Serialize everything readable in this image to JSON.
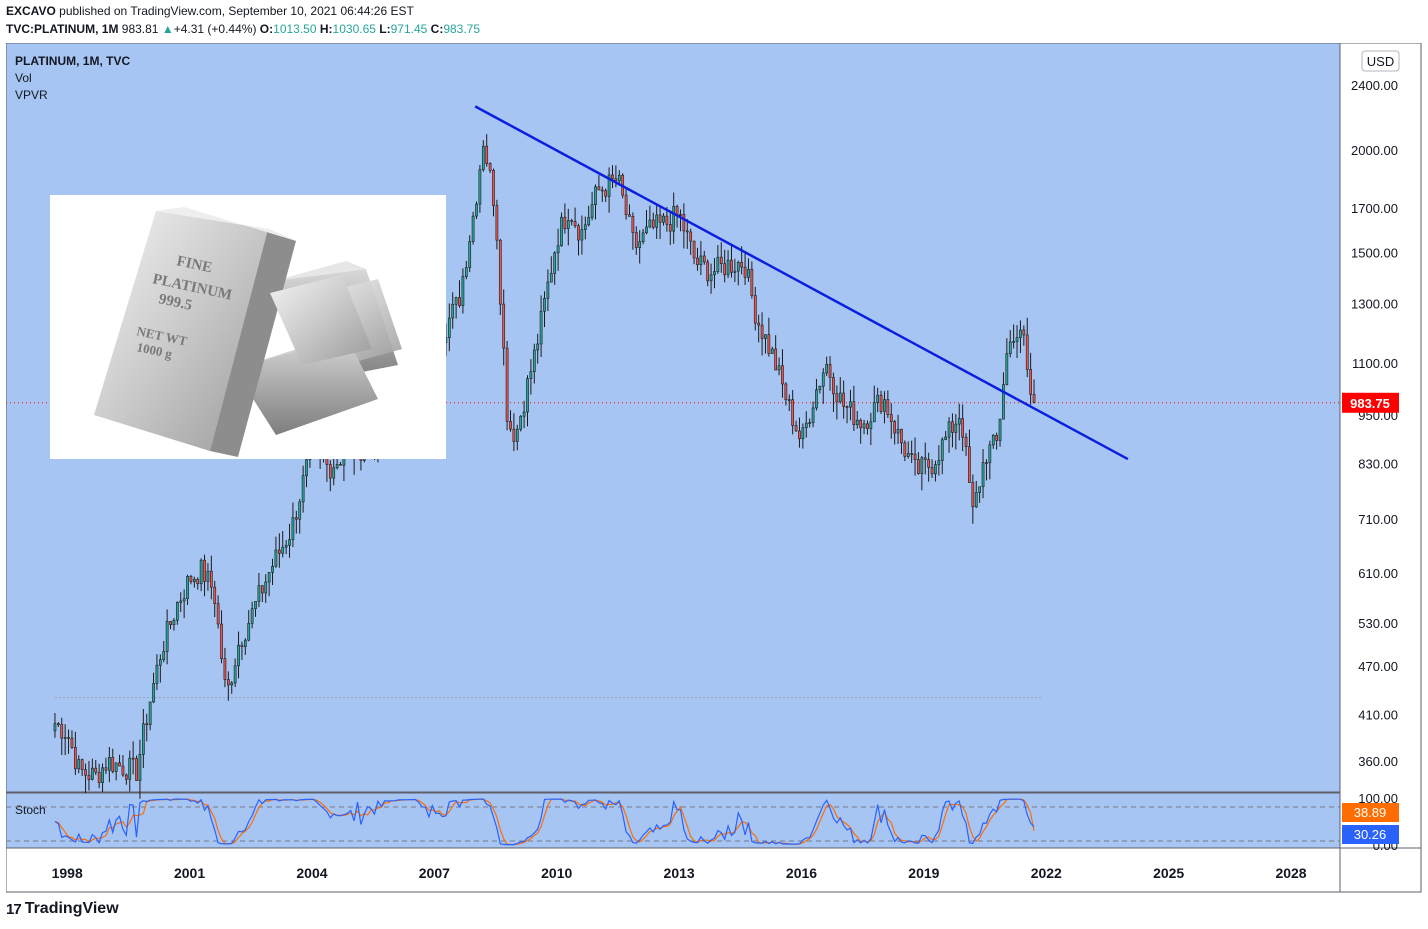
{
  "header": {
    "author": "EXCAVO",
    "published": "published on TradingView.com, September 10, 2021 06:44:26 EST",
    "symbol": "TVC:PLATINUM, 1M",
    "last": "983.81",
    "change_arrow": "▲",
    "change": "+4.31 (+0.44%)",
    "o_label": "O:",
    "o_value": "1013.50",
    "h_label": "H:",
    "h_value": "1030.65",
    "l_label": "L:",
    "l_value": "971.45",
    "c_label": "C:",
    "c_value": "983.75"
  },
  "legend": {
    "title": "PLATINUM, 1M, TVC",
    "vol": "Vol",
    "vpvr": "VPVR"
  },
  "stoch_label": "Stoch",
  "currency": "USD",
  "price_tag": "983.75",
  "stoch_tags": {
    "k": "38.89",
    "d": "30.26"
  },
  "brand": "TradingView",
  "brand_mark": "17",
  "inset_text": {
    "line1": "FINE",
    "line2": "PLATINUM",
    "line3": "999.5",
    "line4": "NET WT",
    "line5": "1000 g"
  },
  "colors": {
    "background": "#a7c5f2",
    "up": "#26a69a",
    "down": "#ef5350",
    "trendline": "#0b1fe0",
    "price_tag": "#ff0000",
    "stoch_k": "#2962ff",
    "stoch_d": "#ff6d00"
  },
  "chart_data": {
    "type": "candlestick",
    "title": "PLATINUM, 1M, TVC",
    "y_scale": "log",
    "ylim": [
      330,
      2700
    ],
    "yticks": [
      "2400.00",
      "2000.00",
      "1700.00",
      "1500.00",
      "1300.00",
      "1100.00",
      "950.00",
      "830.00",
      "710.00",
      "610.00",
      "530.00",
      "470.00",
      "410.00",
      "360.00"
    ],
    "xticks": [
      "1998",
      "2001",
      "2004",
      "2007",
      "2010",
      "2013",
      "2016",
      "2019",
      "2022",
      "2025",
      "2028"
    ],
    "x_range": [
      1996.5,
      2029.2
    ],
    "anchors": [
      [
        1997.7,
        400
      ],
      [
        1998.0,
        390
      ],
      [
        1998.3,
        350
      ],
      [
        1998.7,
        345
      ],
      [
        1999.0,
        360
      ],
      [
        1999.3,
        355
      ],
      [
        1999.7,
        350
      ],
      [
        2000.0,
        420
      ],
      [
        2000.3,
        490
      ],
      [
        2000.7,
        560
      ],
      [
        2001.0,
        600
      ],
      [
        2001.3,
        615
      ],
      [
        2001.6,
        580
      ],
      [
        2001.9,
        430
      ],
      [
        2002.2,
        500
      ],
      [
        2002.5,
        540
      ],
      [
        2003.0,
        620
      ],
      [
        2003.5,
        690
      ],
      [
        2004.0,
        870
      ],
      [
        2004.4,
        820
      ],
      [
        2004.8,
        850
      ],
      [
        2005.5,
        880
      ],
      [
        2006.0,
        1000
      ],
      [
        2006.4,
        1230
      ],
      [
        2006.8,
        1130
      ],
      [
        2007.2,
        1200
      ],
      [
        2007.6,
        1310
      ],
      [
        2008.0,
        1720
      ],
      [
        2008.2,
        2060
      ],
      [
        2008.5,
        1700
      ],
      [
        2008.8,
        930
      ],
      [
        2009.0,
        900
      ],
      [
        2009.5,
        1150
      ],
      [
        2010.0,
        1560
      ],
      [
        2010.3,
        1700
      ],
      [
        2010.6,
        1580
      ],
      [
        2011.0,
        1780
      ],
      [
        2011.5,
        1840
      ],
      [
        2011.9,
        1520
      ],
      [
        2012.3,
        1600
      ],
      [
        2012.7,
        1630
      ],
      [
        2013.0,
        1670
      ],
      [
        2013.4,
        1460
      ],
      [
        2013.8,
        1420
      ],
      [
        2014.2,
        1450
      ],
      [
        2014.6,
        1460
      ],
      [
        2014.9,
        1250
      ],
      [
        2015.3,
        1120
      ],
      [
        2015.7,
        970
      ],
      [
        2016.0,
        880
      ],
      [
        2016.3,
        1000
      ],
      [
        2016.6,
        1100
      ],
      [
        2017.0,
        980
      ],
      [
        2017.5,
        930
      ],
      [
        2018.0,
        1000
      ],
      [
        2018.4,
        890
      ],
      [
        2018.8,
        810
      ],
      [
        2019.2,
        830
      ],
      [
        2019.6,
        900
      ],
      [
        2019.9,
        960
      ],
      [
        2020.2,
        720
      ],
      [
        2020.5,
        850
      ],
      [
        2020.8,
        880
      ],
      [
        2021.0,
        1110
      ],
      [
        2021.2,
        1200
      ],
      [
        2021.45,
        1170
      ],
      [
        2021.6,
        1010
      ],
      [
        2021.7,
        983.75
      ]
    ],
    "trendline": [
      [
        2008.0,
        2260
      ],
      [
        2024.0,
        840
      ]
    ],
    "last_price": 983.75,
    "dotted_level": 430,
    "stoch": {
      "ylim": [
        0,
        100
      ],
      "levels": [
        80,
        20
      ],
      "yticks": [
        "100.00",
        "0.00"
      ],
      "k_last": 38.89,
      "d_last": 30.26
    }
  }
}
